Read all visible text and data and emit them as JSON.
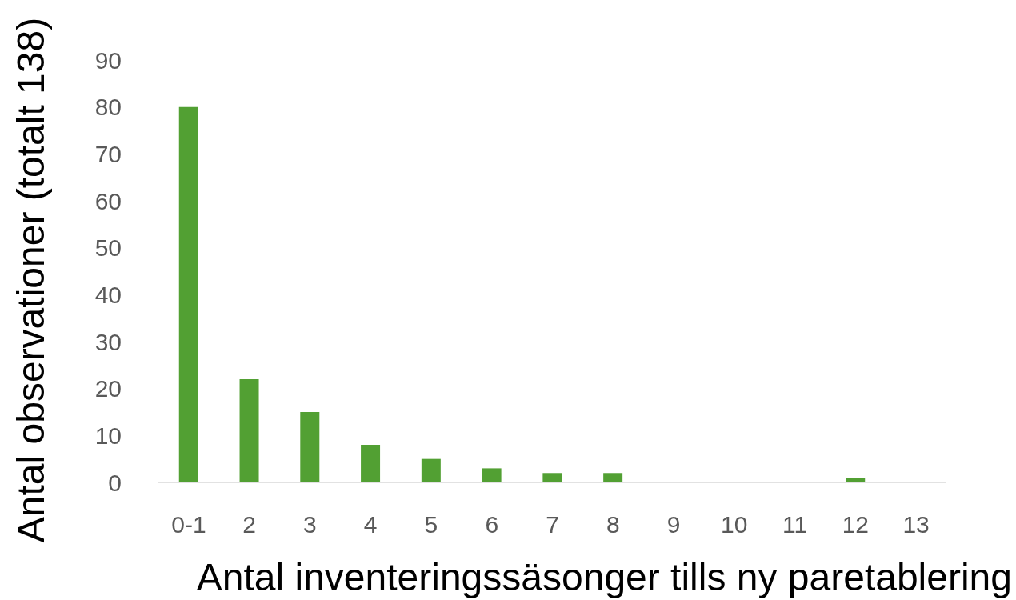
{
  "chart_data": {
    "type": "bar",
    "categories": [
      "0-1",
      "2",
      "3",
      "4",
      "5",
      "6",
      "7",
      "8",
      "9",
      "10",
      "11",
      "12",
      "13"
    ],
    "values": [
      80,
      22,
      15,
      8,
      5,
      3,
      2,
      2,
      0,
      0,
      0,
      1,
      0
    ],
    "color": "#52a033",
    "xlabel": "Antal inventeringssäsonger tills ny paretablering",
    "ylabel": "Antal observationer (totalt 138)",
    "ylim": [
      0,
      90
    ],
    "yticks": [
      0,
      10,
      20,
      30,
      40,
      50,
      60,
      70,
      80,
      90
    ]
  }
}
